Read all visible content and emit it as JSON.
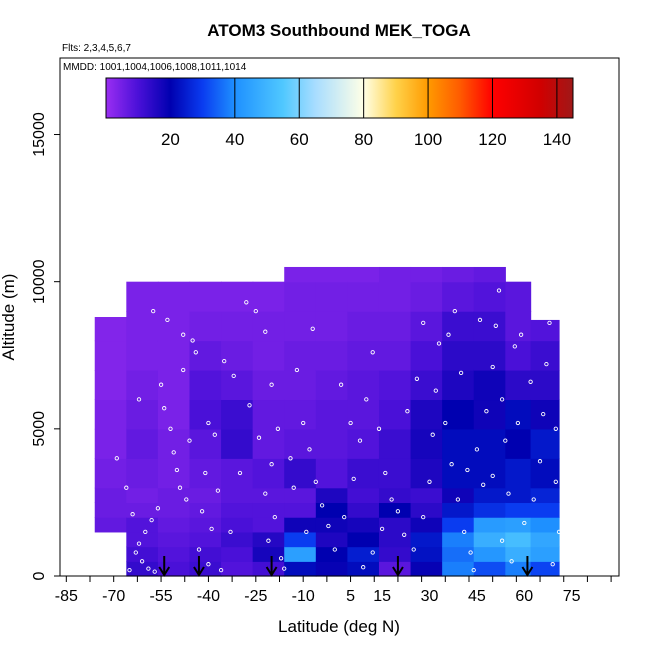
{
  "chart_data": {
    "type": "heatmap",
    "title": "ATOM3 Southbound MEK_TOGA",
    "flights_note": "Flts: 2,3,4,5,6,7",
    "dates_note": "MMDD: 1001,1004,1006,1008,1011,1014",
    "xlabel": "Latitude (deg N)",
    "ylabel": "Altitude (m)",
    "xlim": [
      -87,
      90
    ],
    "ylim": [
      0,
      17600
    ],
    "x_ticks": [
      -85,
      -70,
      -55,
      -40,
      -25,
      -10,
      5,
      15,
      30,
      45,
      60,
      75
    ],
    "x_tick_labels": [
      "-85",
      "-70",
      "-55",
      "-40",
      "-25",
      "-10",
      "5",
      "15",
      "30",
      "45",
      "60",
      "75"
    ],
    "y_ticks": [
      0,
      5000,
      10000,
      15000
    ],
    "y_tick_labels": [
      "0",
      "5000",
      "10000",
      "15000"
    ],
    "colorbar": {
      "range": [
        0,
        145
      ],
      "ticks": [
        20,
        40,
        60,
        80,
        100,
        120,
        140
      ],
      "tick_labels": [
        "20",
        "40",
        "60",
        "80",
        "100",
        "120",
        "140"
      ],
      "divisions": [
        40,
        60,
        80,
        100,
        120,
        140
      ],
      "stops": [
        {
          "v": 0,
          "c": "#9a2ef2"
        },
        {
          "v": 10,
          "c": "#4a10d8"
        },
        {
          "v": 20,
          "c": "#0000b0"
        },
        {
          "v": 30,
          "c": "#0a3cf0"
        },
        {
          "v": 40,
          "c": "#1e90ff"
        },
        {
          "v": 55,
          "c": "#50c8ff"
        },
        {
          "v": 65,
          "c": "#a8ddff"
        },
        {
          "v": 80,
          "c": "#ffffe6"
        },
        {
          "v": 90,
          "c": "#ffd24a"
        },
        {
          "v": 100,
          "c": "#ff9a00"
        },
        {
          "v": 110,
          "c": "#ff5a00"
        },
        {
          "v": 120,
          "c": "#ff0000"
        },
        {
          "v": 135,
          "c": "#d00000"
        },
        {
          "v": 145,
          "c": "#a01818"
        }
      ]
    },
    "profile_arrows_lat": [
      -54,
      -43,
      -20,
      20,
      61
    ],
    "grid": {
      "x_edges": [
        -76,
        -66,
        -56,
        -46,
        -36,
        -26,
        -16,
        -6,
        4,
        14,
        24,
        34,
        44,
        54,
        62,
        71
      ],
      "y_edges": [
        0,
        500,
        1000,
        1500,
        2000,
        2500,
        3000,
        4000,
        5000,
        6000,
        7000,
        8000,
        9000,
        10000,
        10500
      ],
      "top_by_column": [
        8800,
        10000,
        10000,
        10000,
        10000,
        10000,
        10500,
        10500,
        10500,
        10500,
        10500,
        10500,
        10500,
        10000,
        8700
      ],
      "bottom_first_column": 1500,
      "values": [
        [
          14,
          13,
          10,
          12,
          9,
          11,
          22,
          19,
          22,
          8,
          19,
          38,
          32,
          38,
          31
        ],
        [
          12,
          11,
          9,
          11,
          10,
          17,
          44,
          20,
          25,
          13,
          23,
          36,
          42,
          48,
          44
        ],
        [
          8,
          9,
          8,
          9,
          12,
          15,
          30,
          16,
          20,
          14,
          24,
          38,
          48,
          52,
          46
        ],
        [
          7,
          9,
          7,
          8,
          10,
          9,
          18,
          18,
          17,
          14,
          18,
          30,
          43,
          44,
          40
        ],
        [
          6,
          6,
          6,
          7,
          9,
          9,
          9,
          20,
          13,
          20,
          14,
          24,
          28,
          30,
          30
        ],
        [
          6,
          5,
          6,
          6,
          8,
          8,
          8,
          16,
          11,
          13,
          12,
          18,
          24,
          24,
          26
        ],
        [
          5,
          6,
          5,
          7,
          8,
          9,
          13,
          9,
          12,
          12,
          16,
          22,
          22,
          24,
          22
        ],
        [
          4,
          7,
          5,
          8,
          13,
          7,
          8,
          8,
          9,
          12,
          17,
          22,
          22,
          20,
          24
        ],
        [
          4,
          6,
          4,
          10,
          12,
          7,
          7,
          8,
          8,
          10,
          16,
          20,
          18,
          22,
          18
        ],
        [
          3,
          5,
          4,
          9,
          8,
          6,
          6,
          7,
          8,
          9,
          12,
          16,
          18,
          14,
          14
        ],
        [
          3,
          4,
          4,
          7,
          6,
          5,
          6,
          6,
          7,
          7,
          10,
          14,
          14,
          10,
          12
        ],
        [
          3,
          4,
          4,
          5,
          5,
          5,
          5,
          5,
          6,
          6,
          8,
          12,
          12,
          8,
          9
        ],
        [
          3,
          4,
          4,
          4,
          4,
          4,
          5,
          5,
          5,
          5,
          6,
          8,
          9,
          8,
          7
        ],
        [
          3,
          3,
          3,
          3,
          4,
          4,
          4,
          4,
          4,
          5,
          5,
          6,
          7,
          6,
          6
        ]
      ]
    },
    "observations": [
      [
        -57.5,
        9000
      ],
      [
        -55,
        6500
      ],
      [
        -54,
        5700
      ],
      [
        -52,
        5000
      ],
      [
        -51,
        4200
      ],
      [
        -50,
        3600
      ],
      [
        -49,
        3000
      ],
      [
        -47,
        2600
      ],
      [
        -56,
        2300
      ],
      [
        -58,
        1900
      ],
      [
        -60,
        1500
      ],
      [
        -62,
        1100
      ],
      [
        -63,
        800
      ],
      [
        -61,
        500
      ],
      [
        -59,
        250
      ],
      [
        -57,
        150
      ],
      [
        -66,
        3000
      ],
      [
        -64,
        2100
      ],
      [
        -70,
        1400
      ],
      [
        -72,
        900
      ],
      [
        -68,
        500
      ],
      [
        -65,
        200
      ],
      [
        -69,
        4000
      ],
      [
        -62,
        6000
      ],
      [
        -48,
        7000
      ],
      [
        -45,
        8000
      ],
      [
        -44,
        7600
      ],
      [
        -46,
        4600
      ],
      [
        -40,
        5200
      ],
      [
        -38,
        4800
      ],
      [
        -41,
        3500
      ],
      [
        -37,
        2900
      ],
      [
        -42,
        2200
      ],
      [
        -39,
        1600
      ],
      [
        -43,
        900
      ],
      [
        -40,
        400
      ],
      [
        -36,
        200
      ],
      [
        -33,
        1500
      ],
      [
        -30,
        3500
      ],
      [
        -32,
        6800
      ],
      [
        -28,
        9300
      ],
      [
        -25,
        9000
      ],
      [
        -22,
        8300
      ],
      [
        -20,
        6500
      ],
      [
        -18,
        5000
      ],
      [
        -20,
        3800
      ],
      [
        -22,
        2800
      ],
      [
        -19,
        2000
      ],
      [
        -21,
        1200
      ],
      [
        -17,
        600
      ],
      [
        -16,
        250
      ],
      [
        -14,
        4000
      ],
      [
        -10,
        5200
      ],
      [
        -8,
        4300
      ],
      [
        -6,
        3200
      ],
      [
        -4,
        2400
      ],
      [
        -2,
        1700
      ],
      [
        0,
        900
      ],
      [
        -12,
        7000
      ],
      [
        -7,
        8400
      ],
      [
        2,
        6500
      ],
      [
        5,
        5200
      ],
      [
        8,
        4600
      ],
      [
        10,
        6000
      ],
      [
        12,
        7600
      ],
      [
        14,
        5000
      ],
      [
        16,
        3500
      ],
      [
        18,
        2600
      ],
      [
        15,
        1600
      ],
      [
        12,
        800
      ],
      [
        9,
        300
      ],
      [
        20,
        2200
      ],
      [
        22,
        1400
      ],
      [
        25,
        900
      ],
      [
        28,
        2000
      ],
      [
        30,
        3200
      ],
      [
        31,
        4800
      ],
      [
        32,
        6300
      ],
      [
        33,
        7900
      ],
      [
        28,
        8600
      ],
      [
        35,
        5200
      ],
      [
        37,
        3800
      ],
      [
        39,
        2600
      ],
      [
        41,
        1500
      ],
      [
        43,
        800
      ],
      [
        44,
        200
      ],
      [
        40,
        6900
      ],
      [
        36,
        8200
      ],
      [
        45,
        4300
      ],
      [
        47,
        3100
      ],
      [
        48,
        5600
      ],
      [
        50,
        7100
      ],
      [
        51,
        8500
      ],
      [
        52,
        9700
      ],
      [
        53,
        6000
      ],
      [
        54,
        4600
      ],
      [
        55,
        2800
      ],
      [
        53,
        1200
      ],
      [
        56,
        500
      ],
      [
        60,
        1800
      ],
      [
        63,
        2600
      ],
      [
        65,
        3900
      ],
      [
        66,
        5500
      ],
      [
        67,
        7200
      ],
      [
        68,
        8600
      ],
      [
        70,
        5000
      ],
      [
        70,
        3200
      ],
      [
        71,
        1500
      ],
      [
        69,
        400
      ],
      [
        -53,
        8700
      ],
      [
        -48,
        8200
      ],
      [
        -35,
        7300
      ],
      [
        -27,
        5800
      ],
      [
        -24,
        4700
      ],
      [
        -13,
        3000
      ],
      [
        -9,
        1500
      ],
      [
        3,
        2000
      ],
      [
        6,
        3300
      ],
      [
        23,
        5600
      ],
      [
        26,
        6700
      ],
      [
        38,
        9000
      ],
      [
        46,
        8700
      ],
      [
        57,
        7800
      ],
      [
        59,
        8200
      ],
      [
        62,
        6600
      ],
      [
        58,
        5200
      ],
      [
        50,
        3400
      ],
      [
        42,
        3600
      ]
    ]
  }
}
